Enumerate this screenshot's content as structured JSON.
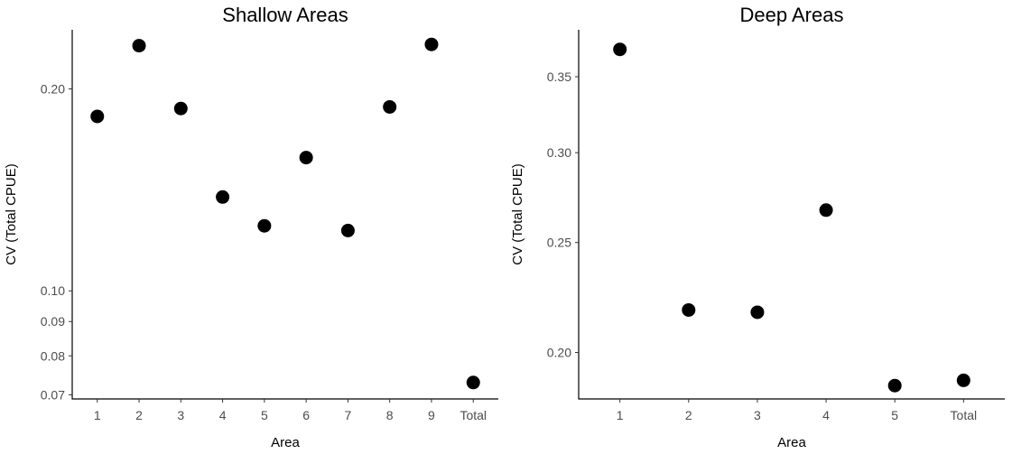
{
  "chart_data": [
    {
      "type": "scatter",
      "title": "Shallow Areas",
      "xlabel": "Area",
      "ylabel": "CV (Total CPUE)",
      "y_scale": "log",
      "categories": [
        "1",
        "2",
        "3",
        "4",
        "5",
        "6",
        "7",
        "8",
        "9",
        "Total"
      ],
      "values": [
        0.182,
        0.232,
        0.187,
        0.138,
        0.125,
        0.158,
        0.123,
        0.188,
        0.233,
        0.073
      ],
      "y_ticks": [
        0.07,
        0.08,
        0.09,
        0.1,
        0.2
      ],
      "y_tick_labels": [
        "0.07",
        "0.08",
        "0.09",
        "0.10",
        "0.20"
      ],
      "ylim": [
        0.069,
        0.245
      ],
      "grid": false,
      "point_color": "#000000"
    },
    {
      "type": "scatter",
      "title": "Deep Areas",
      "xlabel": "Area",
      "ylabel": "CV (Total CPUE)",
      "y_scale": "log",
      "categories": [
        "1",
        "2",
        "3",
        "4",
        "5",
        "Total"
      ],
      "values": [
        0.37,
        0.218,
        0.217,
        0.267,
        0.187,
        0.189
      ],
      "y_ticks": [
        0.2,
        0.25,
        0.3,
        0.35
      ],
      "y_tick_labels": [
        "0.20",
        "0.25",
        "0.30",
        "0.35"
      ],
      "ylim": [
        0.182,
        0.385
      ],
      "grid": false,
      "point_color": "#000000"
    }
  ]
}
